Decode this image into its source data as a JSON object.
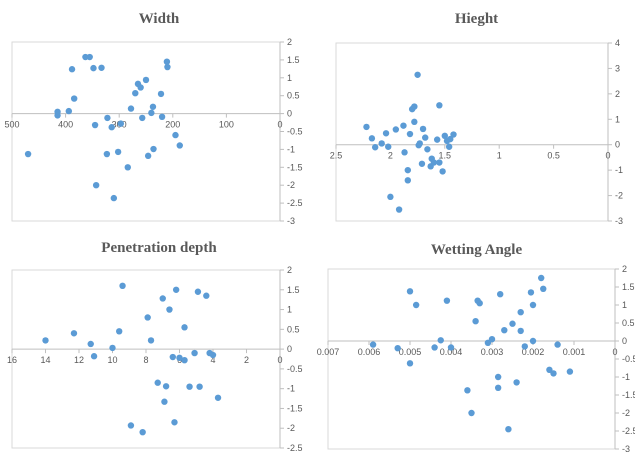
{
  "chart_data": [
    {
      "type": "scatter",
      "title": "Width",
      "xlabel": "",
      "ylabel": "",
      "xlim": [
        500,
        0
      ],
      "ylim": [
        -3,
        2
      ],
      "x_reversed": true,
      "xticks": [
        500,
        400,
        300,
        200,
        100,
        0
      ],
      "yticks": [
        2,
        1.5,
        1,
        0.5,
        0,
        -0.5,
        -1,
        -1.5,
        -2,
        -2.5,
        -3
      ],
      "tick_labels_x": [
        "500",
        "400",
        "300",
        "200",
        "100",
        "0"
      ],
      "tick_labels_y": [
        "2",
        "1.5",
        "1",
        "0.5",
        "0",
        "-0.5",
        "-1",
        "-1.5",
        "-2",
        "-2.5",
        "-3"
      ],
      "grid": false,
      "color": "#5b9bd5",
      "points": [
        [
          470,
          -1.13
        ],
        [
          415,
          0.05
        ],
        [
          415,
          -0.05
        ],
        [
          394,
          0.07
        ],
        [
          388,
          1.24
        ],
        [
          384,
          0.42
        ],
        [
          363,
          1.58
        ],
        [
          355,
          1.58
        ],
        [
          348,
          1.27
        ],
        [
          345,
          -0.32
        ],
        [
          343,
          -2.0
        ],
        [
          333,
          1.28
        ],
        [
          322,
          -0.12
        ],
        [
          323,
          -1.13
        ],
        [
          314,
          -0.38
        ],
        [
          310,
          -2.36
        ],
        [
          302,
          -1.07
        ],
        [
          297,
          -0.28
        ],
        [
          284,
          -1.5
        ],
        [
          278,
          0.14
        ],
        [
          270,
          0.57
        ],
        [
          265,
          0.83
        ],
        [
          260,
          0.73
        ],
        [
          257,
          -0.12
        ],
        [
          250,
          0.94
        ],
        [
          246,
          -1.18
        ],
        [
          240,
          0.02
        ],
        [
          237,
          0.19
        ],
        [
          236,
          -0.99
        ],
        [
          222,
          0.55
        ],
        [
          220,
          -0.09
        ],
        [
          211,
          1.45
        ],
        [
          210,
          1.3
        ],
        [
          195,
          -0.6
        ],
        [
          187,
          -0.89
        ]
      ]
    },
    {
      "type": "scatter",
      "title": "Hieght",
      "xlabel": "",
      "ylabel": "",
      "xlim": [
        2.5,
        0
      ],
      "ylim": [
        -3,
        4
      ],
      "x_reversed": true,
      "xticks": [
        2.5,
        2,
        1.5,
        1,
        0.5,
        0
      ],
      "yticks": [
        4,
        3,
        2,
        1,
        0,
        -1,
        -2,
        -3
      ],
      "tick_labels_x": [
        "2.5",
        "2",
        "1.5",
        "1",
        "0.5",
        "0"
      ],
      "tick_labels_y": [
        "4",
        "3",
        "2",
        "1",
        "0",
        "-1",
        "-2",
        "-3"
      ],
      "grid": false,
      "color": "#5b9bd5",
      "points": [
        [
          2.22,
          0.7
        ],
        [
          2.17,
          0.25
        ],
        [
          2.14,
          -0.1
        ],
        [
          2.08,
          0.05
        ],
        [
          2.04,
          0.45
        ],
        [
          2.02,
          -0.08
        ],
        [
          2.0,
          -2.05
        ],
        [
          1.95,
          0.6
        ],
        [
          1.92,
          -2.55
        ],
        [
          1.88,
          0.75
        ],
        [
          1.87,
          -0.3
        ],
        [
          1.84,
          -1.4
        ],
        [
          1.84,
          -1.0
        ],
        [
          1.82,
          0.42
        ],
        [
          1.8,
          1.4
        ],
        [
          1.78,
          0.9
        ],
        [
          1.78,
          1.5
        ],
        [
          1.75,
          2.75
        ],
        [
          1.74,
          -0.02
        ],
        [
          1.73,
          0.05
        ],
        [
          1.71,
          -0.75
        ],
        [
          1.7,
          0.62
        ],
        [
          1.68,
          0.28
        ],
        [
          1.66,
          -0.18
        ],
        [
          1.63,
          -0.85
        ],
        [
          1.62,
          -0.55
        ],
        [
          1.6,
          -0.7
        ],
        [
          1.57,
          0.2
        ],
        [
          1.55,
          1.55
        ],
        [
          1.55,
          -0.7
        ],
        [
          1.52,
          -1.05
        ],
        [
          1.5,
          0.35
        ],
        [
          1.48,
          0.15
        ],
        [
          1.46,
          -0.08
        ],
        [
          1.45,
          0.22
        ],
        [
          1.42,
          0.4
        ]
      ]
    },
    {
      "type": "scatter",
      "title": "Penetration depth",
      "xlabel": "",
      "ylabel": "",
      "xlim": [
        16,
        0
      ],
      "ylim": [
        -2.5,
        2
      ],
      "x_reversed": true,
      "xticks": [
        16,
        14,
        12,
        10,
        8,
        6,
        4,
        2,
        0
      ],
      "yticks": [
        2,
        1.5,
        1,
        0.5,
        0,
        -0.5,
        -1,
        -1.5,
        -2,
        -2.5
      ],
      "tick_labels_x": [
        "16",
        "14",
        "12",
        "10",
        "8",
        "6",
        "4",
        "2",
        "0"
      ],
      "tick_labels_y": [
        "2",
        "1.5",
        "1",
        "0.5",
        "0",
        "-0.5",
        "-1",
        "-1.5",
        "-2",
        "-2.5"
      ],
      "grid": false,
      "color": "#5b9bd5",
      "points": [
        [
          14.0,
          0.22
        ],
        [
          12.3,
          0.4
        ],
        [
          11.3,
          0.13
        ],
        [
          11.1,
          -0.18
        ],
        [
          10.0,
          0.03
        ],
        [
          9.6,
          0.45
        ],
        [
          9.4,
          1.6
        ],
        [
          8.9,
          -1.93
        ],
        [
          8.2,
          -2.1
        ],
        [
          7.9,
          0.8
        ],
        [
          7.7,
          0.22
        ],
        [
          7.3,
          -0.85
        ],
        [
          7.0,
          1.28
        ],
        [
          6.9,
          -1.33
        ],
        [
          6.8,
          -0.94
        ],
        [
          6.6,
          1.0
        ],
        [
          6.4,
          -0.2
        ],
        [
          6.3,
          -1.85
        ],
        [
          6.2,
          1.5
        ],
        [
          6.0,
          -0.22
        ],
        [
          5.7,
          -0.28
        ],
        [
          5.7,
          0.55
        ],
        [
          5.4,
          -0.95
        ],
        [
          5.1,
          -0.1
        ],
        [
          4.9,
          1.45
        ],
        [
          4.8,
          -0.95
        ],
        [
          4.4,
          1.35
        ],
        [
          4.2,
          -0.1
        ],
        [
          4.0,
          -0.15
        ],
        [
          3.7,
          -1.23
        ]
      ]
    },
    {
      "type": "scatter",
      "title": "Wetting Angle",
      "xlabel": "",
      "ylabel": "",
      "xlim": [
        0.007,
        0
      ],
      "ylim": [
        -3,
        2
      ],
      "x_reversed": true,
      "xticks": [
        0.007,
        0.006,
        0.005,
        0.004,
        0.003,
        0.002,
        0.001,
        0
      ],
      "yticks": [
        2,
        1.5,
        1,
        0.5,
        0,
        -0.5,
        -1,
        -1.5,
        -2,
        -2.5,
        -3
      ],
      "tick_labels_x": [
        "0.007",
        "0.006",
        "0.005",
        "0.004",
        "0.003",
        "0.002",
        "0.001",
        "0"
      ],
      "tick_labels_y": [
        "2",
        "1.5",
        "1",
        "0.5",
        "0",
        "-0.5",
        "-1",
        "-1.5",
        "-2",
        "-2.5",
        "-3"
      ],
      "grid": false,
      "color": "#5b9bd5",
      "points": [
        [
          0.0059,
          -0.1
        ],
        [
          0.0053,
          -0.2
        ],
        [
          0.005,
          1.38
        ],
        [
          0.00485,
          1.0
        ],
        [
          0.005,
          -0.62
        ],
        [
          0.0044,
          -0.18
        ],
        [
          0.00425,
          0.02
        ],
        [
          0.0041,
          1.12
        ],
        [
          0.004,
          -0.18
        ],
        [
          0.0036,
          -1.37
        ],
        [
          0.0035,
          -2.0
        ],
        [
          0.0034,
          0.55
        ],
        [
          0.00335,
          1.12
        ],
        [
          0.0033,
          1.05
        ],
        [
          0.0031,
          -0.05
        ],
        [
          0.003,
          0.05
        ],
        [
          0.00285,
          -1.0
        ],
        [
          0.00285,
          -1.3
        ],
        [
          0.0028,
          1.3
        ],
        [
          0.0027,
          0.3
        ],
        [
          0.0026,
          -2.45
        ],
        [
          0.0025,
          0.48
        ],
        [
          0.0024,
          -1.15
        ],
        [
          0.0023,
          0.8
        ],
        [
          0.0023,
          0.28
        ],
        [
          0.0022,
          -0.15
        ],
        [
          0.00205,
          1.35
        ],
        [
          0.002,
          0.0
        ],
        [
          0.002,
          1.0
        ],
        [
          0.0018,
          1.75
        ],
        [
          0.00175,
          1.45
        ],
        [
          0.0016,
          -0.8
        ],
        [
          0.0015,
          -0.9
        ],
        [
          0.0014,
          -0.1
        ],
        [
          0.0011,
          -0.85
        ]
      ]
    }
  ]
}
